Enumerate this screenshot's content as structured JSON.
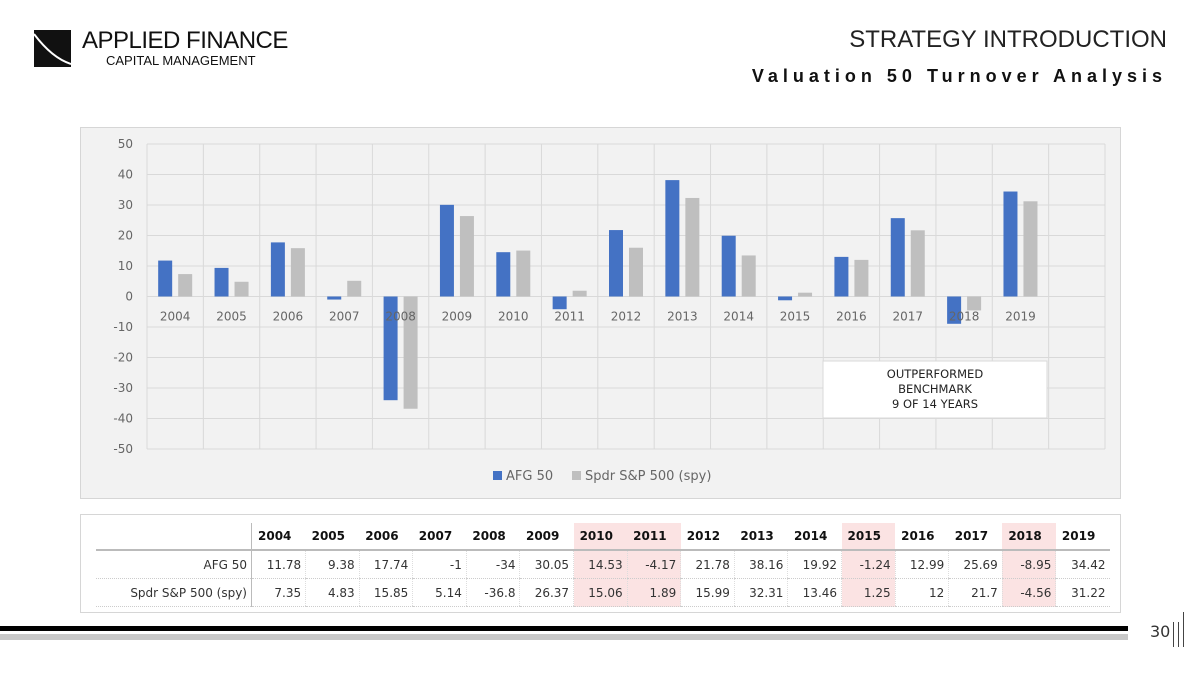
{
  "header": {
    "logo_line1": "APPLIED FINANCE",
    "logo_line2": "CAPITAL MANAGEMENT",
    "title": "STRATEGY INTRODUCTION",
    "subtitle": "Valuation 50 Turnover Analysis"
  },
  "chart_data": {
    "type": "bar",
    "categories": [
      "2004",
      "2005",
      "2006",
      "2007",
      "2008",
      "2009",
      "2010",
      "2011",
      "2012",
      "2013",
      "2014",
      "2015",
      "2016",
      "2017",
      "2018",
      "2019"
    ],
    "series": [
      {
        "name": "AFG 50",
        "color": "#4472c4",
        "values": [
          11.78,
          9.38,
          17.74,
          -1,
          -34,
          30.05,
          14.53,
          -4.17,
          21.78,
          38.16,
          19.92,
          -1.24,
          12.99,
          25.69,
          -8.95,
          34.42
        ]
      },
      {
        "name": "Spdr S&P 500 (spy)",
        "color": "#bfbfbf",
        "values": [
          7.35,
          4.83,
          15.85,
          5.14,
          -36.8,
          26.37,
          15.06,
          1.89,
          15.99,
          32.31,
          13.46,
          1.25,
          12,
          21.7,
          -4.56,
          31.22
        ]
      }
    ],
    "ylim": [
      -50,
      50
    ],
    "yticks": [
      "50",
      "40",
      "30",
      "20",
      "10",
      "0",
      "-10",
      "-20",
      "-30",
      "-40",
      "-50"
    ],
    "grid": true,
    "legend": "bottom",
    "annotation": [
      "OUTPERFORMED",
      "BENCHMARK",
      "9 OF 14 YEARS"
    ]
  },
  "table": {
    "highlight_years": [
      "2010",
      "2011",
      "2015",
      "2018"
    ],
    "highlight_color": "#fbe3e3"
  },
  "footer": {
    "page": "30"
  }
}
